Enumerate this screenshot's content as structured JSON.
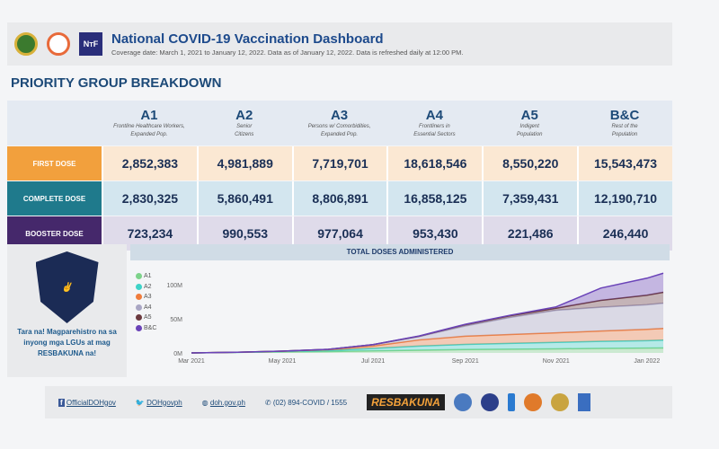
{
  "header": {
    "title": "National COVID-19 Vaccination Dashboard",
    "subtitle": "Coverage date: March 1, 2021 to January 12, 2022. Data as of January 12, 2022. Data is refreshed daily at 12:00 PM.",
    "logos": [
      "DOH",
      "IATF",
      "NTF"
    ]
  },
  "section_title": "PRIORITY GROUP BREAKDOWN",
  "groups": [
    {
      "code": "A1",
      "desc1": "Frontline Healthcare Workers,",
      "desc2": "Expanded Pop."
    },
    {
      "code": "A2",
      "desc1": "Senior",
      "desc2": "Citizens"
    },
    {
      "code": "A3",
      "desc1": "Persons w/ Comorbidities,",
      "desc2": "Expanded Pop."
    },
    {
      "code": "A4",
      "desc1": "Frontliners in",
      "desc2": "Essential Sectors"
    },
    {
      "code": "A5",
      "desc1": "Indigent",
      "desc2": "Population"
    },
    {
      "code": "B&C",
      "desc1": "Rest of the",
      "desc2": "Population"
    }
  ],
  "rows": [
    {
      "label": "FIRST DOSE",
      "color": "#f2a03d",
      "bg": "#fbe8d3",
      "values": [
        "2,852,383",
        "4,981,889",
        "7,719,701",
        "18,618,546",
        "8,550,220",
        "15,543,473"
      ]
    },
    {
      "label": "COMPLETE DOSE",
      "color": "#1f7a8c",
      "bg": "#d3e6ef",
      "values": [
        "2,830,325",
        "5,860,491",
        "8,806,891",
        "16,858,125",
        "7,359,431",
        "12,190,710"
      ]
    },
    {
      "label": "BOOSTER DOSE",
      "color": "#45286b",
      "bg": "#dfdbea",
      "values": [
        "723,234",
        "990,553",
        "977,064",
        "953,430",
        "221,486",
        "246,440"
      ]
    }
  ],
  "promo": {
    "logo_text": "RESBAKUNA",
    "text": "Tara na! Magparehistro na sa inyong mga LGUs at mag RESBAKUNA na!"
  },
  "chart_data": {
    "type": "area",
    "stacked": true,
    "title": "TOTAL DOSES ADMINISTERED",
    "legend_position": "left",
    "x": [
      "2021-03-01",
      "2021-04-01",
      "2021-05-01",
      "2021-06-01",
      "2021-07-01",
      "2021-08-01",
      "2021-09-01",
      "2021-10-01",
      "2021-11-01",
      "2021-12-01",
      "2022-01-01",
      "2022-01-12"
    ],
    "x_ticks": [
      "Mar 2021",
      "May 2021",
      "Jul 2021",
      "Sep 2021",
      "Nov 2021",
      "Jan 2022"
    ],
    "y_ticks": [
      "0M",
      "50M",
      "100M"
    ],
    "ylim": [
      0,
      125
    ],
    "y_unit": "M",
    "series": [
      {
        "name": "A1",
        "color": "#7dd38a",
        "values": [
          0,
          0.8,
          1.5,
          2,
          3,
          4,
          5,
          5.5,
          6,
          6.5,
          7,
          7.3
        ]
      },
      {
        "name": "A2",
        "color": "#3ed3c8",
        "values": [
          0,
          0.1,
          0.7,
          1.5,
          3.5,
          6,
          7.5,
          8.5,
          9.5,
          10.5,
          11,
          11.5
        ]
      },
      {
        "name": "A3",
        "color": "#f07c3c",
        "values": [
          0,
          0.05,
          0.3,
          1.2,
          3.5,
          9,
          12,
          13,
          14,
          15,
          16.5,
          17
        ]
      },
      {
        "name": "A4",
        "color": "#a9a6c4",
        "values": [
          0,
          0.05,
          0.2,
          0.5,
          2,
          5,
          15,
          25,
          33,
          35,
          36,
          37
        ]
      },
      {
        "name": "A5",
        "color": "#6b3a3f",
        "values": [
          0,
          0,
          0,
          0,
          0.2,
          0.5,
          2,
          2.5,
          3,
          10,
          14,
          16
        ]
      },
      {
        "name": "B&C",
        "color": "#6a43b8",
        "values": [
          0,
          0,
          0,
          0,
          0,
          0.3,
          0.5,
          0.7,
          2,
          18,
          25,
          28
        ]
      }
    ]
  },
  "footer": {
    "facebook": "OfficialDOHgov",
    "twitter": "DOHgovph",
    "web": "doh.gov.ph",
    "phone": "(02) 894-COVID / 1555",
    "partner_logo": "RESBAKUNA"
  }
}
